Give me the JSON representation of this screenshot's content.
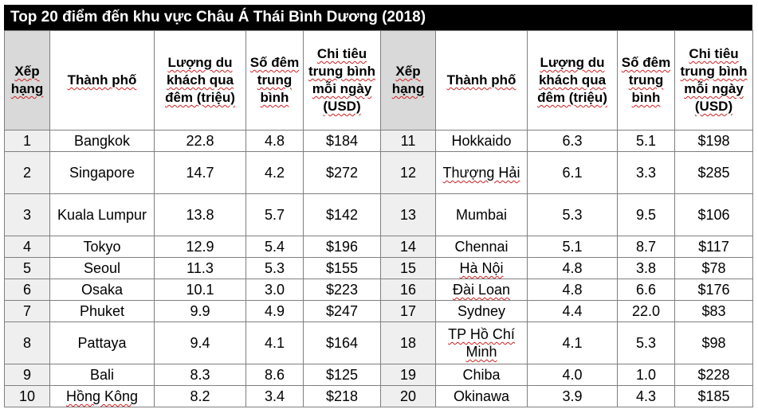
{
  "title": "Top 20 điểm đến khu vực Châu Á Thái Bình Dương (2018)",
  "headers": {
    "rank": "Xếp hạng",
    "city": "Thành phố",
    "visitors": "Lượng du khách qua đêm (triệu)",
    "nights": "Số đêm trung bình",
    "spend": "Chi tiêu trung bình mỗi ngày (USD)"
  },
  "rows": [
    {
      "left": {
        "rank": "1",
        "city": "Bangkok",
        "visitors": "22.8",
        "nights": "4.8",
        "spend": "$184"
      },
      "right": {
        "rank": "11",
        "city": "Hokkaido",
        "visitors": "6.3",
        "nights": "5.1",
        "spend": "$198"
      }
    },
    {
      "left": {
        "rank": "2",
        "city": "Singapore",
        "visitors": "14.7",
        "nights": "4.2",
        "spend": "$272"
      },
      "right": {
        "rank": "12",
        "city": "Thượng Hải",
        "visitors": "6.1",
        "nights": "3.3",
        "spend": "$285"
      }
    },
    {
      "left": {
        "rank": "3",
        "city": "Kuala Lumpur",
        "visitors": "13.8",
        "nights": "5.7",
        "spend": "$142"
      },
      "right": {
        "rank": "13",
        "city": "Mumbai",
        "visitors": "5.3",
        "nights": "9.5",
        "spend": "$106"
      }
    },
    {
      "left": {
        "rank": "4",
        "city": "Tokyo",
        "visitors": "12.9",
        "nights": "5.4",
        "spend": "$196"
      },
      "right": {
        "rank": "14",
        "city": "Chennai",
        "visitors": "5.1",
        "nights": "8.7",
        "spend": "$117"
      }
    },
    {
      "left": {
        "rank": "5",
        "city": "Seoul",
        "visitors": "11.3",
        "nights": "5.3",
        "spend": "$155"
      },
      "right": {
        "rank": "15",
        "city": "Hà Nội",
        "visitors": "4.8",
        "nights": "3.8",
        "spend": "$78"
      }
    },
    {
      "left": {
        "rank": "6",
        "city": "Osaka",
        "visitors": "10.1",
        "nights": "3.0",
        "spend": "$223"
      },
      "right": {
        "rank": "16",
        "city": "Đài Loan",
        "visitors": "4.8",
        "nights": "6.6",
        "spend": "$176"
      }
    },
    {
      "left": {
        "rank": "7",
        "city": "Phuket",
        "visitors": "9.9",
        "nights": "4.9",
        "spend": "$247"
      },
      "right": {
        "rank": "17",
        "city": "Sydney",
        "visitors": "4.4",
        "nights": "22.0",
        "spend": "$83"
      }
    },
    {
      "left": {
        "rank": "8",
        "city": "Pattaya",
        "visitors": "9.4",
        "nights": "4.1",
        "spend": "$164"
      },
      "right": {
        "rank": "18",
        "city": "TP Hồ Chí Minh",
        "visitors": "4.1",
        "nights": "5.3",
        "spend": "$98"
      }
    },
    {
      "left": {
        "rank": "9",
        "city": "Bali",
        "visitors": "8.3",
        "nights": "8.6",
        "spend": "$125"
      },
      "right": {
        "rank": "19",
        "city": "Chiba",
        "visitors": "4.0",
        "nights": "1.0",
        "spend": "$228"
      }
    },
    {
      "left": {
        "rank": "10",
        "city": "Hồng Kông",
        "visitors": "8.2",
        "nights": "3.4",
        "spend": "$218"
      },
      "right": {
        "rank": "20",
        "city": "Okinawa",
        "visitors": "3.9",
        "nights": "4.3",
        "spend": "$185"
      }
    }
  ]
}
